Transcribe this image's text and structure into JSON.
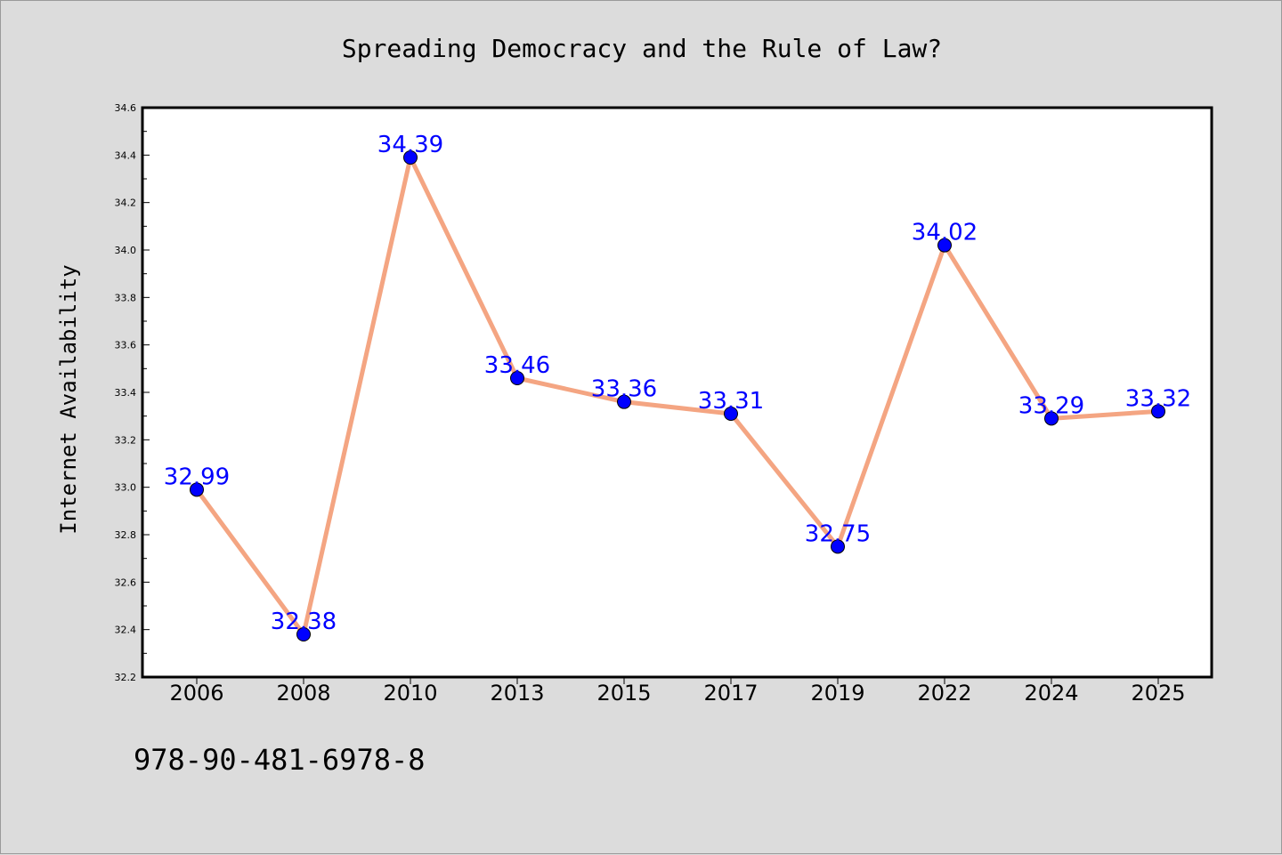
{
  "chart_data": {
    "type": "line",
    "title": "Spreading Democracy and the Rule of Law?",
    "xlabel": "",
    "ylabel": "Internet Availability",
    "categories": [
      "2006",
      "2008",
      "2010",
      "2013",
      "2015",
      "2017",
      "2019",
      "2022",
      "2024",
      "2025"
    ],
    "values": [
      32.99,
      32.38,
      34.39,
      33.46,
      33.36,
      33.31,
      32.75,
      34.02,
      33.29,
      33.32
    ],
    "data_labels": [
      "32.99",
      "32.38",
      "34.39",
      "33.46",
      "33.36",
      "33.31",
      "32.75",
      "34.02",
      "33.29",
      "33.32"
    ],
    "ylim": [
      32.2,
      34.6
    ],
    "yticks": [
      "32.2",
      "32.4",
      "32.6",
      "32.8",
      "33.0",
      "33.2",
      "33.4",
      "33.6",
      "33.8",
      "34.0",
      "34.2",
      "34.4",
      "34.6"
    ],
    "grid": false,
    "colors": {
      "line": "#f4a582",
      "marker": "#0000ff",
      "label": "#0000ff",
      "background": "#dcdcdc",
      "plot_area": "#ffffff"
    }
  },
  "caption": "978-90-481-6978-8"
}
